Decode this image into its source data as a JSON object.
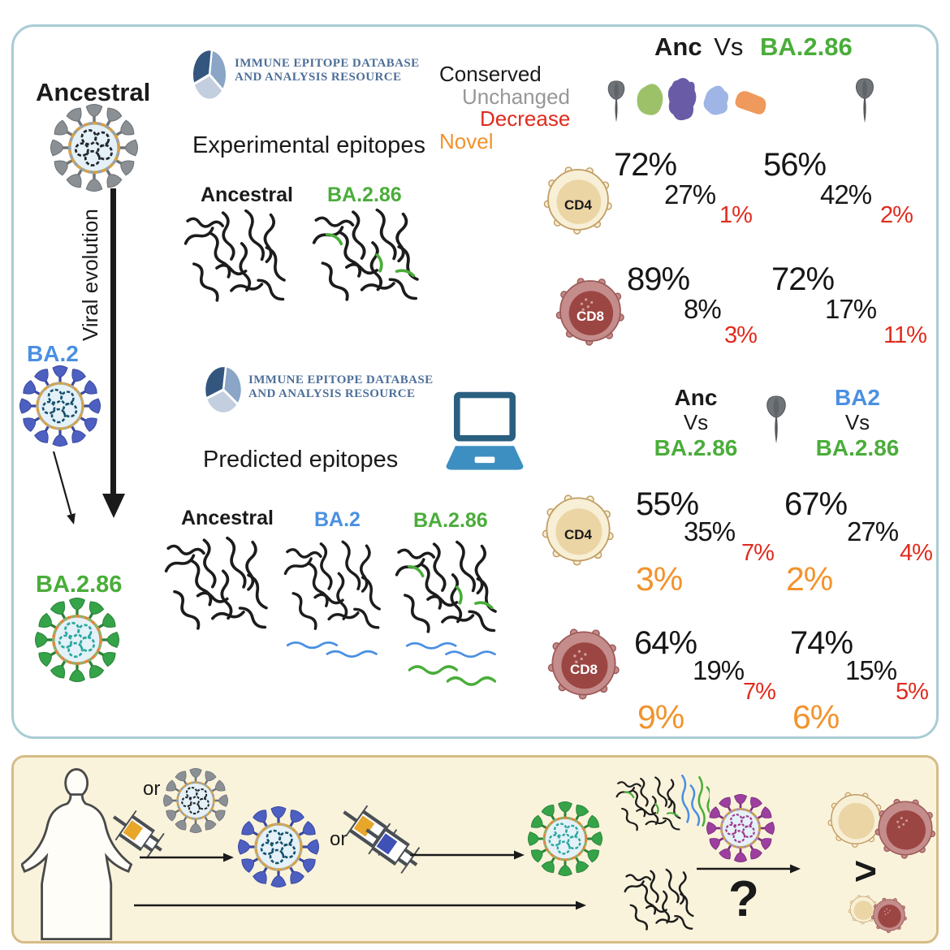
{
  "colors": {
    "green": "#4aad3a",
    "blue": "#4a90e2",
    "virus_blue_spike": "#4d5fc0",
    "red": "#e02b1e",
    "orange": "#f2932c",
    "gray": "#979797",
    "black": "#1a1a1a",
    "iedb_text": "#4e6f99",
    "top_panel_border": "#a9ccd4",
    "bottom_panel_bg": "#faf3dc",
    "bottom_panel_border": "#d6bc86",
    "laptop_frame": "#2b5f80",
    "laptop_base": "#3d8fc2"
  },
  "left_column": {
    "ancestral_label": "Ancestral",
    "viral_evolution_label": "Viral evolution",
    "ba2_label": "BA.2",
    "ba286_label": "BA.2.86"
  },
  "iedb": {
    "line1": "IMMUNE EPITOPE DATABASE",
    "line2": "AND ANALYSIS RESOURCE"
  },
  "experimental": {
    "title": "Experimental epitopes",
    "groups": [
      "Ancestral",
      "BA.2.86"
    ]
  },
  "predicted": {
    "title": "Predicted epitopes",
    "groups": [
      "Ancestral",
      "BA.2",
      "BA.2.86"
    ]
  },
  "legend": {
    "conserved": "Conserved",
    "unchanged": "Unchanged",
    "decrease": "Decrease",
    "novel": "Novel"
  },
  "experimental_results": {
    "header": {
      "left": "Anc",
      "vs": "Vs",
      "right": "BA.2.86"
    },
    "rows": [
      {
        "cell": "CD4",
        "blocks": [
          {
            "conserved": "72%",
            "unchanged": "27%",
            "decrease": "1%"
          },
          {
            "conserved": "56%",
            "unchanged": "42%",
            "decrease": "2%"
          }
        ]
      },
      {
        "cell": "CD8",
        "blocks": [
          {
            "conserved": "89%",
            "unchanged": "8%",
            "decrease": "3%"
          },
          {
            "conserved": "72%",
            "unchanged": "17%",
            "decrease": "11%"
          }
        ]
      }
    ]
  },
  "predicted_results": {
    "comparisons": [
      {
        "top": "Anc",
        "vs": "Vs",
        "bottom": "BA.2.86"
      },
      {
        "top": "BA2",
        "vs": "Vs",
        "bottom": "BA.2.86"
      }
    ],
    "rows": [
      {
        "cell": "CD4",
        "blocks": [
          {
            "conserved": "55%",
            "unchanged": "35%",
            "decrease": "7%",
            "novel": "3%"
          },
          {
            "conserved": "67%",
            "unchanged": "27%",
            "decrease": "4%",
            "novel": "2%"
          }
        ]
      },
      {
        "cell": "CD8",
        "blocks": [
          {
            "conserved": "64%",
            "unchanged": "19%",
            "decrease": "7%",
            "novel": "9%"
          },
          {
            "conserved": "74%",
            "unchanged": "15%",
            "decrease": "5%",
            "novel": "6%"
          }
        ]
      }
    ]
  },
  "bottom_panel": {
    "or_labels": [
      "or",
      "or"
    ],
    "question_mark": "?",
    "greater_than": ">"
  }
}
